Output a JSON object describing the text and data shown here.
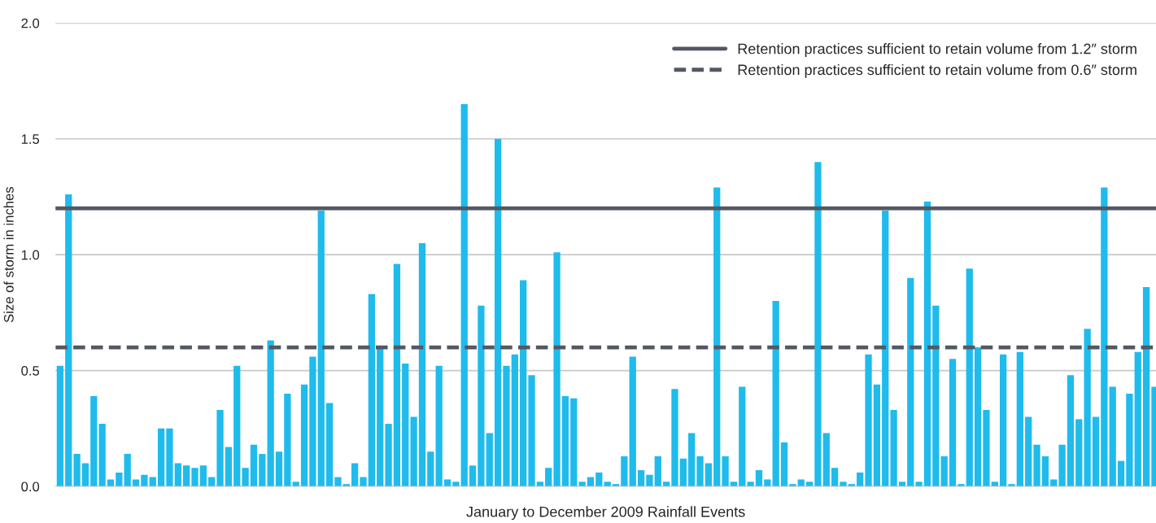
{
  "chart_data": {
    "type": "bar",
    "xlabel": "January to December 2009 Rainfall Events",
    "ylabel": "Size of storm in inches",
    "categories": [
      null,
      null,
      null,
      null,
      null,
      null,
      null,
      null,
      null,
      null,
      null,
      null,
      null,
      null,
      null,
      null,
      null,
      null,
      null,
      null,
      null,
      null,
      null,
      null,
      null,
      null,
      null,
      null,
      null,
      null,
      null,
      null,
      null,
      null,
      null,
      null,
      null,
      null,
      null,
      null,
      null,
      null,
      null,
      null,
      null,
      null,
      null,
      null,
      null,
      null,
      null,
      null,
      null,
      null,
      null,
      null,
      null,
      null,
      null,
      null,
      null,
      null,
      null,
      null,
      null,
      null,
      null,
      null,
      null,
      null,
      null,
      null,
      null,
      null,
      null,
      null,
      null,
      null,
      null,
      null,
      null,
      null,
      null,
      null,
      null,
      null,
      null,
      null,
      null,
      null,
      null,
      null,
      null,
      null,
      null,
      null,
      null,
      null,
      null,
      null,
      null,
      null,
      null,
      null,
      null,
      null,
      null,
      null,
      null,
      null,
      null,
      null,
      null,
      null,
      null,
      null,
      null,
      null,
      null,
      null,
      null,
      null,
      null,
      null,
      null,
      null,
      null,
      null,
      null,
      null,
      null
    ],
    "values": [
      0.52,
      1.26,
      0.14,
      0.1,
      0.39,
      0.27,
      0.03,
      0.06,
      0.14,
      0.03,
      0.05,
      0.04,
      0.25,
      0.25,
      0.1,
      0.09,
      0.08,
      0.09,
      0.04,
      0.33,
      0.17,
      0.52,
      0.08,
      0.18,
      0.14,
      0.63,
      0.15,
      0.4,
      0.02,
      0.44,
      0.56,
      1.19,
      0.36,
      0.04,
      0.01,
      0.1,
      0.04,
      0.83,
      0.6,
      0.27,
      0.96,
      0.53,
      0.3,
      1.05,
      0.15,
      0.52,
      0.03,
      0.02,
      1.65,
      0.09,
      0.78,
      0.23,
      1.5,
      0.52,
      0.57,
      0.89,
      0.48,
      0.02,
      0.08,
      1.01,
      0.39,
      0.38,
      0.02,
      0.04,
      0.06,
      0.02,
      0.01,
      0.13,
      0.56,
      0.07,
      0.05,
      0.13,
      0.02,
      0.42,
      0.12,
      0.23,
      0.13,
      0.1,
      1.29,
      0.13,
      0.02,
      0.43,
      0.02,
      0.07,
      0.03,
      0.8,
      0.19,
      0.01,
      0.03,
      0.02,
      1.4,
      0.23,
      0.08,
      0.02,
      0.01,
      0.06,
      0.57,
      0.44,
      1.19,
      0.33,
      0.02,
      0.9,
      0.02,
      1.23,
      0.78,
      0.13,
      0.55,
      0.01,
      0.94,
      0.6,
      0.33,
      0.02,
      0.57,
      0.01,
      0.58,
      0.3,
      0.18,
      0.13,
      0.03,
      0.18,
      0.48,
      0.29,
      0.68,
      0.3,
      1.29,
      0.43,
      0.11,
      0.4,
      0.58,
      0.86,
      0.43
    ],
    "color": "#1fbbec",
    "ylim": [
      0,
      2.0
    ],
    "yticks": [
      {
        "value": 0,
        "label": "0.0"
      },
      {
        "value": 0.5,
        "label": "0.5"
      },
      {
        "value": 1.0,
        "label": "1.0"
      },
      {
        "value": 1.5,
        "label": "1.5"
      },
      {
        "value": 2.0,
        "label": "2.0"
      }
    ],
    "grid": "y",
    "ref_lines": [
      {
        "axis": "y",
        "value": 1.2,
        "label": "Retention practices sufficient to retain volume from 1.2″ storm",
        "color": "#545863",
        "line_style": "solid"
      },
      {
        "axis": "y",
        "value": 0.6,
        "label": "Retention practices sufficient to retain volume from 0.6″ storm",
        "color": "#545863",
        "line_style": "dashed"
      }
    ],
    "legend": "top right"
  }
}
